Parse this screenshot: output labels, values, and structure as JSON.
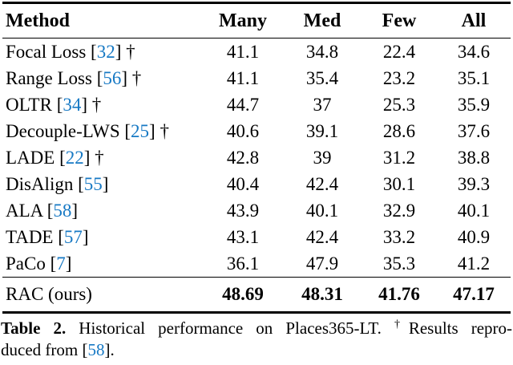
{
  "colors": {
    "citation_blue": "#1779c4",
    "text": "#000000",
    "background": "#ffffff"
  },
  "table": {
    "columns": [
      "Method",
      "Many",
      "Med",
      "Few",
      "All"
    ],
    "rows": [
      {
        "prefix": "Focal Loss [",
        "cite": "32",
        "suffix": "] †",
        "values": [
          "41.1",
          "34.8",
          "22.4",
          "34.6"
        ]
      },
      {
        "prefix": "Range Loss [",
        "cite": "56",
        "suffix": "] †",
        "values": [
          "41.1",
          "35.4",
          "23.2",
          "35.1"
        ]
      },
      {
        "prefix": "OLTR [",
        "cite": "34",
        "suffix": "] †",
        "values": [
          "44.7",
          "37",
          "25.3",
          "35.9"
        ]
      },
      {
        "prefix": "Decouple-LWS [",
        "cite": "25",
        "suffix": "] †",
        "values": [
          "40.6",
          "39.1",
          "28.6",
          "37.6"
        ]
      },
      {
        "prefix": "LADE [",
        "cite": "22",
        "suffix": "] †",
        "values": [
          "42.8",
          "39",
          "31.2",
          "38.8"
        ]
      },
      {
        "prefix": "DisAlign [",
        "cite": "55",
        "suffix": "]",
        "values": [
          "40.4",
          "42.4",
          "30.1",
          "39.3"
        ]
      },
      {
        "prefix": "ALA [",
        "cite": "58",
        "suffix": "]",
        "values": [
          "43.9",
          "40.1",
          "32.9",
          "40.1"
        ]
      },
      {
        "prefix": "TADE [",
        "cite": "57",
        "suffix": "]",
        "values": [
          "43.1",
          "42.4",
          "33.2",
          "40.9"
        ]
      },
      {
        "prefix": "PaCo [",
        "cite": "7",
        "suffix": "]",
        "values": [
          "36.1",
          "47.9",
          "35.3",
          "41.2"
        ]
      },
      {
        "prefix": "RAC (ours)",
        "cite": "",
        "suffix": "",
        "values": [
          "48.69",
          "48.31",
          "41.76",
          "47.17"
        ]
      }
    ]
  },
  "caption": {
    "label": "Table 2.",
    "line1_text": " Historical performance on Places365-LT. ",
    "dagger": "†",
    "line1_rest": "Results repro-",
    "line2_prefix": "duced from [",
    "cite": "58",
    "line2_suffix": "]."
  }
}
